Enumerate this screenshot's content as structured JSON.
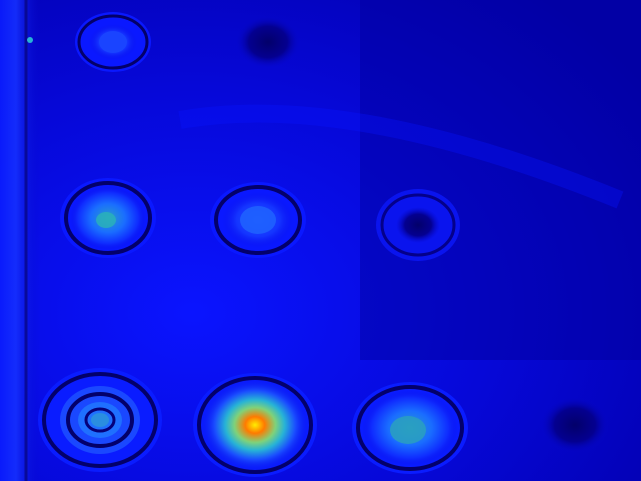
{
  "image": {
    "kind": "false-color intensity map",
    "palette": [
      "#0000a8",
      "#0a10e8",
      "#1a4dff",
      "#27b3d6",
      "#7fd27a",
      "#f2b000",
      "#ff6a00"
    ],
    "background_color": "#0608c8"
  },
  "spots": [
    {
      "label": "row1-col1",
      "level": 0.25
    },
    {
      "label": "row1-col2",
      "level": 0.1
    },
    {
      "label": "row2-col1",
      "level": 0.55
    },
    {
      "label": "row2-col2",
      "level": 0.45
    },
    {
      "label": "row2-col3",
      "level": 0.08
    },
    {
      "label": "row3-col1",
      "level": 0.5
    },
    {
      "label": "row3-col2",
      "level": 1.0
    },
    {
      "label": "row3-col3",
      "level": 0.6
    },
    {
      "label": "row3-col4",
      "level": 0.1
    }
  ]
}
